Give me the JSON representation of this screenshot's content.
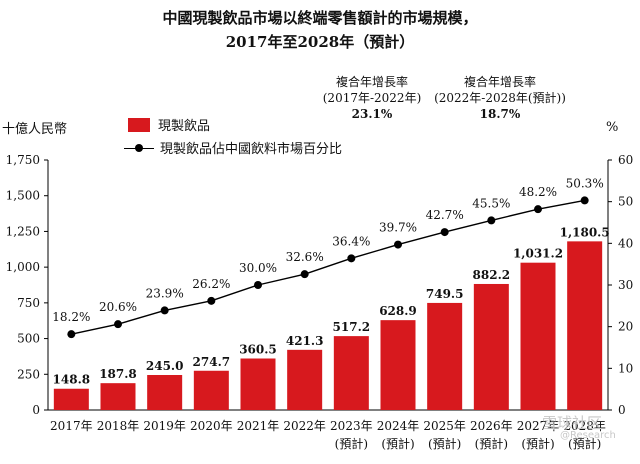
{
  "title_line1": "中國現製飲品市場以終端零售額計的市場規模，",
  "title_line2": "2017年至2028年（預計）",
  "unit_left": "十億人民幣",
  "unit_right": "%",
  "cagr": [
    {
      "label": "複合年增長率",
      "period": "(2017年-2022年)",
      "value": "23.1%"
    },
    {
      "label": "複合年增長率",
      "period": "(2022年-2028年(預計))",
      "value": "18.7%"
    }
  ],
  "legend": {
    "bar": "現製飲品",
    "line": "現製飲品佔中國飲料市場百分比"
  },
  "watermark": "雪球社区",
  "watermark_sub": "@Research",
  "colors": {
    "bar": "#d7191e",
    "line": "#000000"
  },
  "chart_data": {
    "type": "bar",
    "title": "中國現製飲品市場以終端零售額計的市場規模，2017年至2028年（預計）",
    "categories": [
      "2017年",
      "2018年",
      "2019年",
      "2020年",
      "2021年",
      "2022年",
      "2023年",
      "2024年",
      "2025年",
      "2026年",
      "2027年",
      "2028年"
    ],
    "category_sub": [
      "",
      "",
      "",
      "",
      "",
      "",
      "(預計)",
      "(預計)",
      "(預計)",
      "(預計)",
      "(預計)",
      "(預計)"
    ],
    "series": [
      {
        "name": "現製飲品",
        "type": "bar",
        "axis": "left",
        "values": [
          148.8,
          187.8,
          245.0,
          274.7,
          360.5,
          421.3,
          517.2,
          628.9,
          749.5,
          882.2,
          1031.2,
          1180.5
        ],
        "labels": [
          "148.8",
          "187.8",
          "245.0",
          "274.7",
          "360.5",
          "421.3",
          "517.2",
          "628.9",
          "749.5",
          "882.2",
          "1,031.2",
          "1,180.5"
        ]
      },
      {
        "name": "現製飲品佔中國飲料市場百分比",
        "type": "line",
        "axis": "right",
        "values": [
          18.2,
          20.6,
          23.9,
          26.2,
          30.0,
          32.6,
          36.4,
          39.7,
          42.7,
          45.5,
          48.2,
          50.3
        ],
        "labels": [
          "18.2%",
          "20.6%",
          "23.9%",
          "26.2%",
          "30.0%",
          "32.6%",
          "36.4%",
          "39.7%",
          "42.7%",
          "45.5%",
          "48.2%",
          "50.3%"
        ]
      }
    ],
    "ylabel": "十億人民幣",
    "y2label": "%",
    "ylim": [
      0,
      1750
    ],
    "y2lim": [
      0,
      60
    ],
    "yticks": [
      "0",
      "250",
      "500",
      "750",
      "1,000",
      "1,250",
      "1,500",
      "1,750"
    ],
    "y2ticks": [
      "0",
      "10",
      "20",
      "30",
      "40",
      "50",
      "60"
    ]
  }
}
